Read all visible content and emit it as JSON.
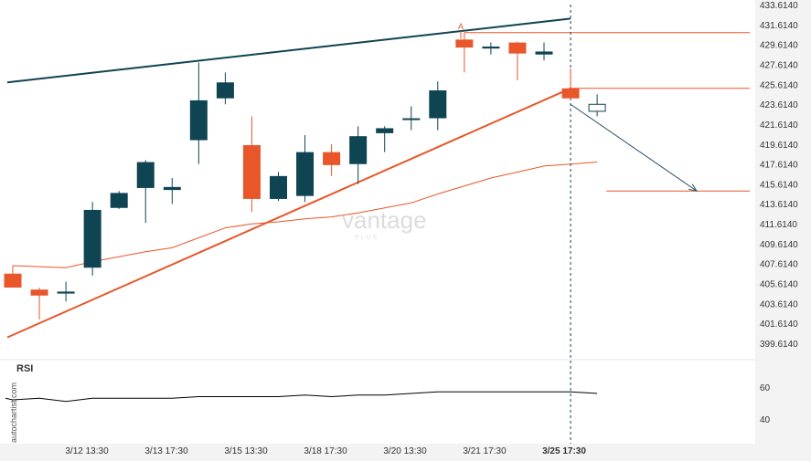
{
  "chart_data": {
    "type": "candlestick",
    "x_tick_labels": [
      "3/12 13:30",
      "3/13 17:30",
      "3/15 13:30",
      "3/18 17:30",
      "3/20 13:30",
      "3/21 17:30",
      "3/25 17:30"
    ],
    "y_tick_labels": [
      "433.6140",
      "431.6140",
      "429.6140",
      "427.6140",
      "425.6140",
      "423.6140",
      "421.6140",
      "419.6140",
      "417.6140",
      "415.6140",
      "413.6140",
      "411.6140",
      "409.6140",
      "407.6140",
      "405.6140",
      "403.6140",
      "401.6140",
      "399.6140"
    ],
    "ylim": [
      397.8,
      434.2
    ],
    "candles": [
      {
        "o": 406.6,
        "h": 407.4,
        "l": 405.2,
        "c": 405.2
      },
      {
        "o": 405.0,
        "h": 405.2,
        "l": 402.0,
        "c": 404.4
      },
      {
        "o": 404.6,
        "h": 405.8,
        "l": 403.8,
        "c": 404.8
      },
      {
        "o": 407.2,
        "h": 413.8,
        "l": 406.4,
        "c": 413.0
      },
      {
        "o": 413.2,
        "h": 414.9,
        "l": 413.1,
        "c": 414.7
      },
      {
        "o": 415.2,
        "h": 418.0,
        "l": 411.7,
        "c": 417.8
      },
      {
        "o": 415.0,
        "h": 416.2,
        "l": 413.6,
        "c": 415.3
      },
      {
        "o": 420.0,
        "h": 427.8,
        "l": 417.6,
        "c": 424.0
      },
      {
        "o": 424.2,
        "h": 426.8,
        "l": 423.6,
        "c": 425.8
      },
      {
        "o": 419.5,
        "h": 422.4,
        "l": 412.8,
        "c": 414.1
      },
      {
        "o": 414.1,
        "h": 416.8,
        "l": 413.9,
        "c": 416.4
      },
      {
        "o": 414.4,
        "h": 420.5,
        "l": 413.8,
        "c": 418.8
      },
      {
        "o": 418.8,
        "h": 419.6,
        "l": 416.4,
        "c": 417.5
      },
      {
        "o": 417.6,
        "h": 421.4,
        "l": 415.6,
        "c": 420.4
      },
      {
        "o": 420.7,
        "h": 421.4,
        "l": 418.8,
        "c": 421.2
      },
      {
        "o": 422.2,
        "h": 423.4,
        "l": 421.0,
        "c": 422.2
      },
      {
        "o": 422.2,
        "h": 425.9,
        "l": 421.0,
        "c": 425.0
      },
      {
        "o": 430.1,
        "h": 430.8,
        "l": 426.8,
        "c": 429.3
      },
      {
        "o": 429.2,
        "h": 429.8,
        "l": 428.6,
        "c": 429.4
      },
      {
        "o": 429.8,
        "h": 429.9,
        "l": 426.0,
        "c": 428.7
      },
      {
        "o": 428.6,
        "h": 429.8,
        "l": 428.0,
        "c": 428.9
      },
      {
        "o": 425.2,
        "h": 427.2,
        "l": 424.2,
        "c": 424.2
      },
      {
        "o": 422.9,
        "h": 424.6,
        "l": 422.4,
        "c": 423.6
      }
    ],
    "moving_average": [
      407.4,
      407.3,
      407.2,
      407.8,
      408.3,
      408.8,
      409.2,
      410.2,
      411.2,
      411.6,
      411.8,
      412.1,
      412.3,
      412.7,
      413.2,
      413.7,
      414.6,
      415.4,
      416.2,
      416.8,
      417.4,
      417.6,
      417.8
    ],
    "upper_trendline": [
      [
        0,
        425.8
      ],
      [
        21,
        432.2
      ]
    ],
    "lower_trendline": [
      [
        0,
        400.2
      ],
      [
        21,
        425.2
      ]
    ],
    "resistance_level": 430.8,
    "support_level_a": 425.2,
    "target_level": 414.9,
    "forecast_arrow": [
      [
        21,
        423.6
      ],
      [
        26,
        414.9
      ]
    ],
    "annotation": "A",
    "rsi": {
      "label": "RSI",
      "values": [
        52,
        53,
        51,
        53,
        53,
        53,
        53,
        54,
        54,
        54,
        54,
        55,
        54,
        55,
        55,
        56,
        57,
        57,
        57,
        57,
        57,
        57,
        56
      ],
      "y_tick_labels": [
        "60",
        "40"
      ],
      "ylim": [
        30,
        70
      ]
    }
  },
  "side_text": "autochartist.com",
  "watermark": {
    "main": "vantage",
    "sub": "PLUS"
  },
  "colors": {
    "bull": "#0f4452",
    "bear": "#e8562a",
    "upper_line": "#0f4452",
    "lower_line": "#e8562a",
    "ma": "#e8562a",
    "rsi": "#000000",
    "axis_bg": "#f3f3f3",
    "arrow": "#2a5566"
  }
}
